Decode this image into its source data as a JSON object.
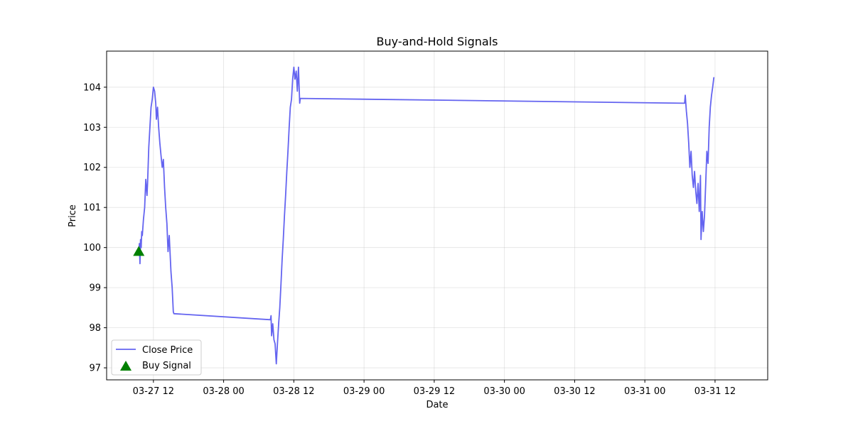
{
  "chart_data": {
    "type": "line",
    "title": "Buy-and-Hold Signals",
    "xlabel": "Date",
    "ylabel": "Price",
    "grid": true,
    "legend_placement": "lower-left",
    "x_ticks": [
      {
        "label": "03-27 12",
        "hours": 12
      },
      {
        "label": "03-28 00",
        "hours": 24
      },
      {
        "label": "03-28 12",
        "hours": 36
      },
      {
        "label": "03-29 00",
        "hours": 48
      },
      {
        "label": "03-29 12",
        "hours": 60
      },
      {
        "label": "03-30 00",
        "hours": 72
      },
      {
        "label": "03-30 12",
        "hours": 84
      },
      {
        "label": "03-31 00",
        "hours": 96
      },
      {
        "label": "03-31 12",
        "hours": 108
      }
    ],
    "xlim_hours": [
      4.0,
      117.0
    ],
    "ylim": [
      96.7,
      104.9
    ],
    "y_ticks": [
      97,
      98,
      99,
      100,
      101,
      102,
      103,
      104
    ],
    "series": [
      {
        "name": "Close Price",
        "color": "#6464f0",
        "points": [
          [
            9.5,
            99.9
          ],
          [
            9.6,
            100.1
          ],
          [
            9.7,
            99.6
          ],
          [
            9.8,
            100.2
          ],
          [
            9.9,
            100.0
          ],
          [
            10.0,
            100.4
          ],
          [
            10.1,
            100.3
          ],
          [
            10.3,
            100.7
          ],
          [
            10.5,
            101.0
          ],
          [
            10.7,
            101.7
          ],
          [
            10.9,
            101.3
          ],
          [
            11.0,
            101.6
          ],
          [
            11.2,
            102.5
          ],
          [
            11.4,
            103.0
          ],
          [
            11.6,
            103.5
          ],
          [
            11.8,
            103.7
          ],
          [
            12.0,
            104.0
          ],
          [
            12.2,
            103.9
          ],
          [
            12.4,
            103.6
          ],
          [
            12.5,
            103.2
          ],
          [
            12.7,
            103.5
          ],
          [
            12.9,
            103.0
          ],
          [
            13.1,
            102.6
          ],
          [
            13.3,
            102.3
          ],
          [
            13.5,
            102.0
          ],
          [
            13.7,
            102.2
          ],
          [
            13.9,
            101.5
          ],
          [
            14.1,
            101.0
          ],
          [
            14.3,
            100.6
          ],
          [
            14.5,
            99.9
          ],
          [
            14.7,
            100.3
          ],
          [
            14.9,
            99.7
          ],
          [
            15.0,
            99.4
          ],
          [
            15.2,
            99.0
          ],
          [
            15.4,
            98.4
          ],
          [
            15.5,
            98.35
          ],
          [
            32.0,
            98.2
          ],
          [
            32.1,
            98.3
          ],
          [
            32.2,
            97.8
          ],
          [
            32.4,
            98.1
          ],
          [
            32.6,
            97.7
          ],
          [
            32.8,
            97.6
          ],
          [
            33.0,
            97.1
          ],
          [
            33.2,
            97.6
          ],
          [
            33.4,
            98.1
          ],
          [
            33.6,
            98.5
          ],
          [
            33.8,
            99.1
          ],
          [
            34.0,
            99.7
          ],
          [
            34.2,
            100.2
          ],
          [
            34.4,
            100.8
          ],
          [
            34.6,
            101.3
          ],
          [
            34.8,
            101.9
          ],
          [
            35.0,
            102.4
          ],
          [
            35.2,
            103.0
          ],
          [
            35.4,
            103.5
          ],
          [
            35.6,
            103.7
          ],
          [
            35.8,
            104.2
          ],
          [
            36.0,
            104.5
          ],
          [
            36.2,
            104.2
          ],
          [
            36.4,
            104.4
          ],
          [
            36.6,
            103.9
          ],
          [
            36.8,
            104.5
          ],
          [
            37.0,
            103.6
          ],
          [
            37.1,
            103.72
          ],
          [
            102.8,
            103.6
          ],
          [
            102.9,
            103.8
          ],
          [
            103.1,
            103.4
          ],
          [
            103.3,
            103.1
          ],
          [
            103.5,
            102.6
          ],
          [
            103.7,
            102.0
          ],
          [
            103.9,
            102.4
          ],
          [
            104.1,
            101.8
          ],
          [
            104.3,
            101.5
          ],
          [
            104.5,
            101.9
          ],
          [
            104.7,
            101.4
          ],
          [
            104.9,
            101.1
          ],
          [
            105.1,
            101.6
          ],
          [
            105.3,
            100.9
          ],
          [
            105.5,
            101.8
          ],
          [
            105.6,
            100.2
          ],
          [
            105.8,
            100.9
          ],
          [
            106.0,
            100.4
          ],
          [
            106.2,
            100.8
          ],
          [
            106.4,
            101.6
          ],
          [
            106.6,
            102.4
          ],
          [
            106.8,
            102.1
          ],
          [
            107.0,
            103.0
          ],
          [
            107.2,
            103.5
          ],
          [
            107.4,
            103.8
          ],
          [
            107.6,
            104.0
          ],
          [
            107.8,
            104.25
          ]
        ]
      }
    ],
    "markers": [
      {
        "name": "Buy Signal",
        "color": "#008000",
        "shape": "triangle-up",
        "points": [
          [
            9.5,
            99.9
          ]
        ]
      }
    ]
  }
}
